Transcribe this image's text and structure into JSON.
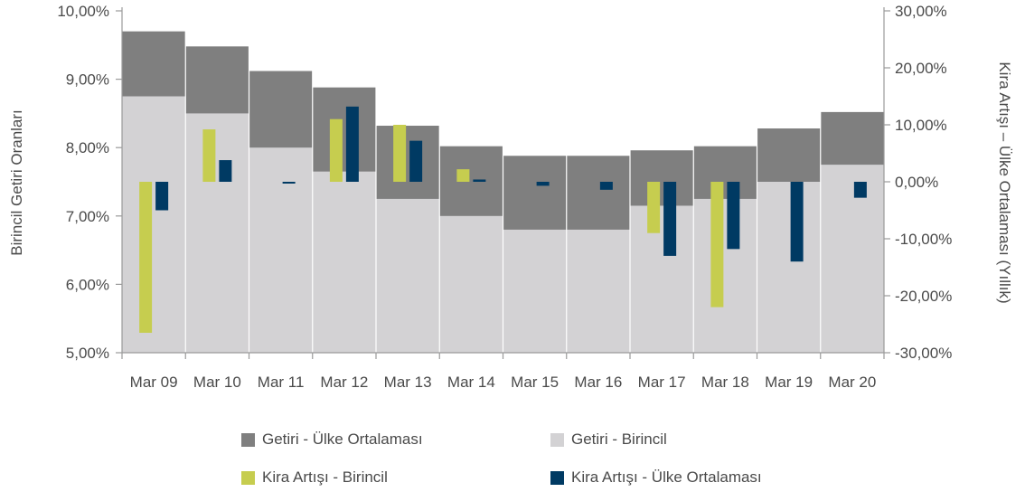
{
  "chart_data": {
    "type": "bar",
    "categories": [
      "Mar 09",
      "Mar 10",
      "Mar 11",
      "Mar 12",
      "Mar 13",
      "Mar 14",
      "Mar 15",
      "Mar 16",
      "Mar 17",
      "Mar 18",
      "Mar 19",
      "Mar 20"
    ],
    "left_axis": {
      "title": "Birincil Getiri Oranları",
      "ylim": [
        5,
        10
      ],
      "ticks": [
        "5,00%",
        "6,00%",
        "7,00%",
        "8,00%",
        "9,00%",
        "10,00%"
      ],
      "tick_values": [
        5,
        6,
        7,
        8,
        9,
        10
      ]
    },
    "right_axis": {
      "title": "Kira Artışı – Ülke Ortalaması (Yıllık)",
      "ylim": [
        -30,
        30
      ],
      "ticks": [
        "-30,00%",
        "-20,00%",
        "-10,00%",
        "0,00%",
        "10,00%",
        "20,00%",
        "30,00%"
      ],
      "tick_values": [
        -30,
        -20,
        -10,
        0,
        10,
        20,
        30
      ]
    },
    "series": [
      {
        "name": "Getiri - Ülke Ortalaması",
        "axis": "left",
        "color": "#7f7f7f",
        "values": [
          9.7,
          9.48,
          9.12,
          8.88,
          8.32,
          8.02,
          7.88,
          7.88,
          7.96,
          8.02,
          8.28,
          8.52
        ]
      },
      {
        "name": "Getiri - Birincil",
        "axis": "left",
        "color": "#d3d2d4",
        "values": [
          8.75,
          8.5,
          8.0,
          7.65,
          7.25,
          7.0,
          6.8,
          6.8,
          7.15,
          7.25,
          7.5,
          7.75
        ]
      },
      {
        "name": "Kira Artışı - Birincil",
        "axis": "right",
        "color": "#c6cd4f",
        "values": [
          -26.5,
          9.2,
          0,
          11.0,
          10.0,
          2.2,
          0,
          0,
          -9.0,
          -22.0,
          0,
          0
        ]
      },
      {
        "name": "Kira Artışı - Ülke Ortalaması",
        "axis": "right",
        "color": "#003a63",
        "values": [
          -5.0,
          3.8,
          -0.3,
          13.2,
          7.2,
          0.4,
          -0.7,
          -1.4,
          -13.0,
          -11.8,
          -14.0,
          -2.8
        ]
      }
    ],
    "grid": false,
    "legend_position": "bottom"
  }
}
